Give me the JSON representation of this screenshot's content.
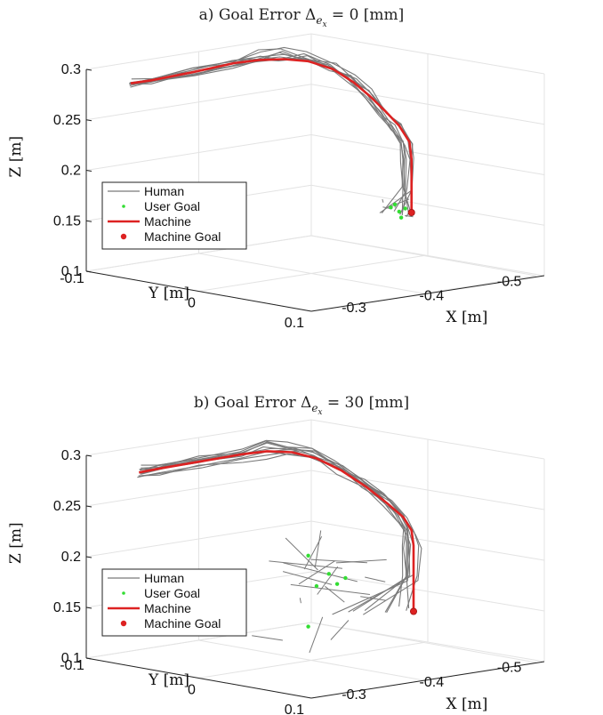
{
  "chart_data": [
    {
      "type": "line3d",
      "title": "a) Goal Error Δ",
      "title_sub": "e",
      "title_subsub": "x",
      "title_tail": " = 0 [mm]",
      "xlabel": "X [m]",
      "ylabel": "Y [m]",
      "zlabel": "Z [m]",
      "x_ticks": [
        "-0.3",
        "-0.4",
        "-0.5"
      ],
      "y_ticks": [
        "-0.1",
        "0",
        "0.1"
      ],
      "z_ticks": [
        "0.1",
        "0.15",
        "0.2",
        "0.25",
        "0.3"
      ],
      "zlim": [
        0.1,
        0.3
      ],
      "grid": true,
      "legend_position": "lower-left",
      "legend": [
        "Human",
        "User Goal",
        "Machine",
        "Machine Goal"
      ],
      "colors": {
        "human": "#7a7a7a",
        "user_goal": "#33dd33",
        "machine": "#dd2222",
        "machine_goal": "#dd2222"
      },
      "machine_path": [
        [
          0.27,
          0.265
        ],
        [
          0.32,
          0.268
        ],
        [
          0.42,
          0.276
        ],
        [
          0.52,
          0.285
        ],
        [
          0.58,
          0.288
        ],
        [
          0.64,
          0.289
        ],
        [
          0.7,
          0.287
        ],
        [
          0.76,
          0.279
        ],
        [
          0.81,
          0.266
        ],
        [
          0.85,
          0.252
        ],
        [
          0.89,
          0.236
        ],
        [
          0.92,
          0.223
        ],
        [
          0.945,
          0.207
        ],
        [
          0.95,
          0.19
        ],
        [
          0.95,
          0.16
        ],
        [
          0.95,
          0.137
        ]
      ],
      "human_goal_spread": 0.4,
      "user_goals": [
        [
          0.9,
          0.142
        ],
        [
          0.92,
          0.138
        ],
        [
          0.935,
          0.141
        ],
        [
          0.925,
          0.132
        ],
        [
          0.91,
          0.145
        ]
      ],
      "machine_goal": [
        0.95,
        0.137
      ],
      "human_trajectories": 9
    },
    {
      "type": "line3d",
      "title": "b) Goal Error Δ",
      "title_sub": "e",
      "title_subsub": "x",
      "title_tail": " = 30 [mm]",
      "xlabel": "X [m]",
      "ylabel": "Y [m]",
      "zlabel": "Z [m]",
      "x_ticks": [
        "-0.3",
        "-0.4",
        "-0.5"
      ],
      "y_ticks": [
        "-0.1",
        "0",
        "0.1"
      ],
      "z_ticks": [
        "0.1",
        "0.15",
        "0.2",
        "0.25",
        "0.3"
      ],
      "zlim": [
        0.1,
        0.3
      ],
      "grid": true,
      "legend_position": "lower-left",
      "legend": [
        "Human",
        "User Goal",
        "Machine",
        "Machine Goal"
      ],
      "colors": {
        "human": "#7a7a7a",
        "user_goal": "#33dd33",
        "machine": "#dd2222",
        "machine_goal": "#dd2222"
      },
      "machine_path": [
        [
          0.29,
          0.262
        ],
        [
          0.34,
          0.266
        ],
        [
          0.44,
          0.273
        ],
        [
          0.54,
          0.28
        ],
        [
          0.6,
          0.283
        ],
        [
          0.66,
          0.282
        ],
        [
          0.72,
          0.276
        ],
        [
          0.78,
          0.264
        ],
        [
          0.84,
          0.248
        ],
        [
          0.89,
          0.232
        ],
        [
          0.93,
          0.218
        ],
        [
          0.95,
          0.205
        ],
        [
          0.955,
          0.19
        ],
        [
          0.955,
          0.16
        ],
        [
          0.955,
          0.125
        ]
      ],
      "human_goal_spread": 1.0,
      "user_goals": [
        [
          0.7,
          0.18
        ],
        [
          0.75,
          0.162
        ],
        [
          0.79,
          0.158
        ],
        [
          0.77,
          0.152
        ],
        [
          0.7,
          0.11
        ],
        [
          0.72,
          0.15
        ]
      ],
      "machine_goal": [
        0.955,
        0.125
      ],
      "human_trajectories": 10
    }
  ]
}
